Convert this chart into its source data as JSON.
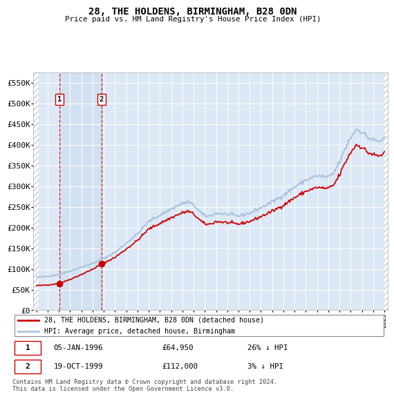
{
  "title": "28, THE HOLDENS, BIRMINGHAM, B28 0DN",
  "subtitle": "Price paid vs. HM Land Registry's House Price Index (HPI)",
  "legend_line1": "28, THE HOLDENS, BIRMINGHAM, B28 0DN (detached house)",
  "legend_line2": "HPI: Average price, detached house, Birmingham",
  "sale1_date": "05-JAN-1996",
  "sale1_price": 64950,
  "sale1_hpi_text": "26% ↓ HPI",
  "sale2_date": "19-OCT-1999",
  "sale2_price": 112000,
  "sale2_hpi_text": "3% ↓ HPI",
  "footer": "Contains HM Land Registry data © Crown copyright and database right 2024.\nThis data is licensed under the Open Government Licence v3.0.",
  "ylim": [
    0,
    575000
  ],
  "yticks": [
    0,
    50000,
    100000,
    150000,
    200000,
    250000,
    300000,
    350000,
    400000,
    450000,
    500000,
    550000
  ],
  "sale1_x": 1996.04,
  "sale2_x": 1999.8,
  "hpi_color": "#a8c4e0",
  "price_color": "#cc0000",
  "bg_plot": "#dce8f5",
  "grid_color": "#ffffff",
  "hatch_color": "#c8d8e8"
}
